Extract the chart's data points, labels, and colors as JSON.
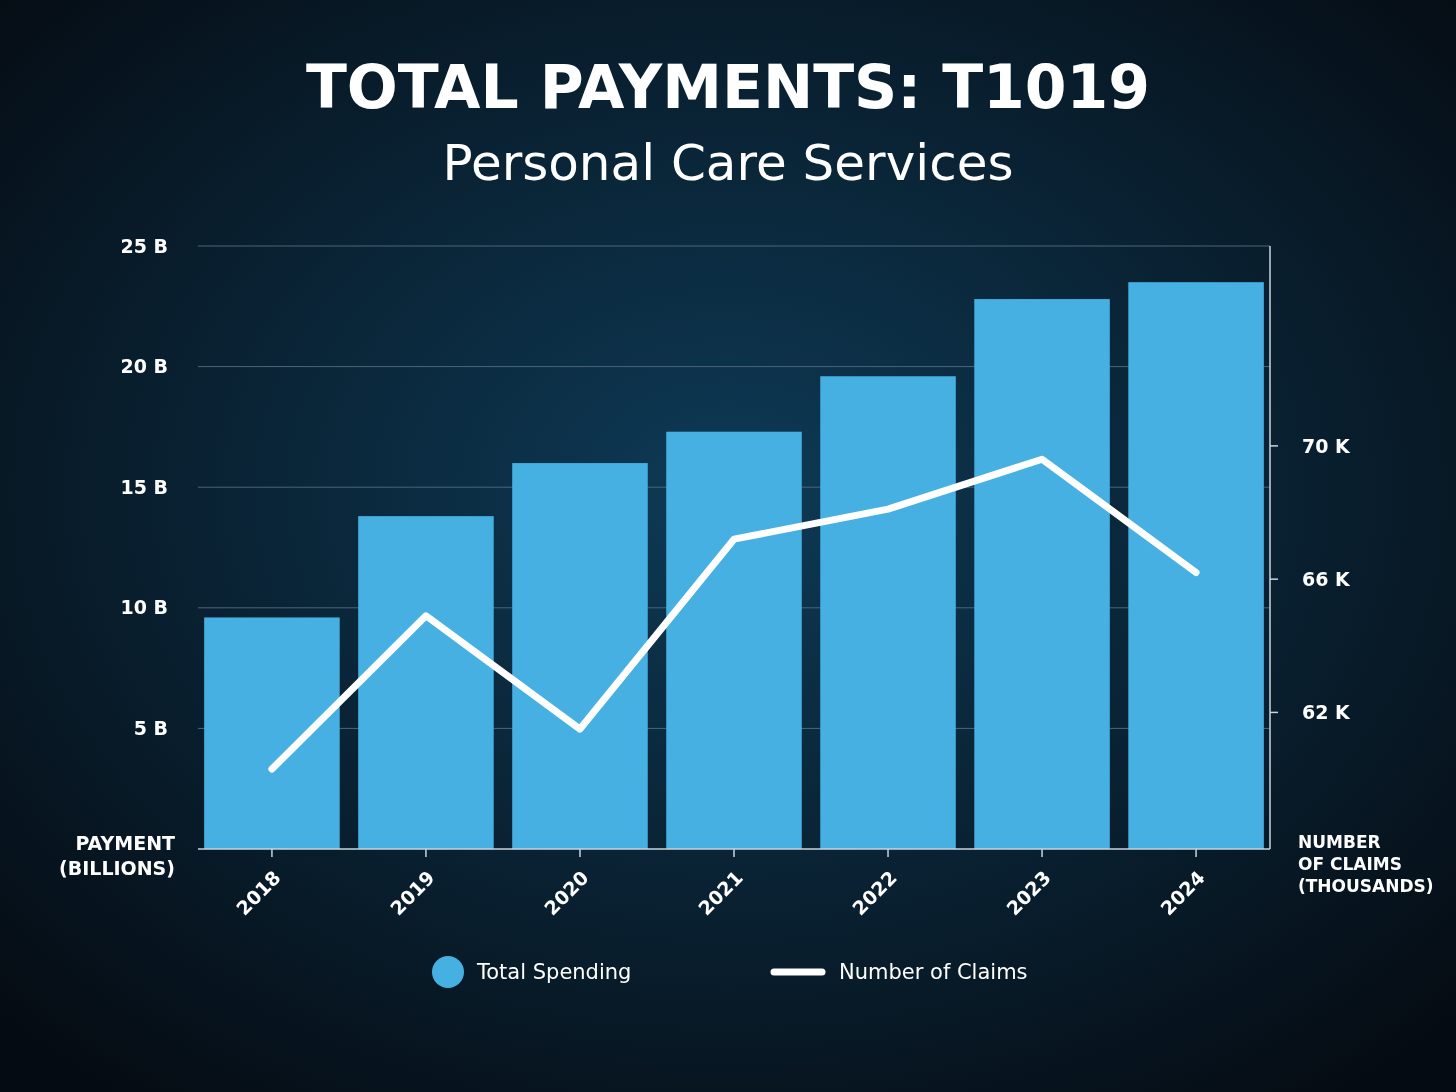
{
  "chart_data": {
    "type": "bar",
    "title": "TOTAL PAYMENTS: T1019",
    "subtitle": "Personal Care Services",
    "xlabel": null,
    "ylabel": "PAYMENT\n(BILLIONS)",
    "y2label": "NUMBER\nOF CLAIMS\n(THOUSANDS)",
    "categories": [
      "2018",
      "2019",
      "2020",
      "2021",
      "2022",
      "2023",
      "2024"
    ],
    "series": [
      {
        "name": "Total Spending",
        "color": "#46b0e3",
        "values": [
          9.6,
          13.8,
          16.0,
          17.3,
          19.6,
          22.8,
          23.5
        ]
      },
      {
        "name": "Number of Claims",
        "type": "line",
        "axis": "y2",
        "color": "#ffffff",
        "values": [
          60.3,
          64.9,
          61.5,
          67.2,
          68.1,
          69.6,
          66.2
        ]
      }
    ],
    "ylim": [
      0,
      25
    ],
    "yticks": [
      {
        "value": 5,
        "label": "5 B"
      },
      {
        "value": 10,
        "label": "10 B"
      },
      {
        "value": 15,
        "label": "15 B"
      },
      {
        "value": 20,
        "label": "20 B"
      },
      {
        "value": 25,
        "label": "25 B"
      }
    ],
    "y2lim": [
      57.9,
      76
    ],
    "y2ticks": [
      {
        "value": 62,
        "label": "62 K"
      },
      {
        "value": 66,
        "label": "66 K"
      },
      {
        "value": 70,
        "label": "70 K"
      }
    ],
    "grid": "y",
    "legend": "bottom",
    "marker": "none",
    "line_style": "solid"
  }
}
